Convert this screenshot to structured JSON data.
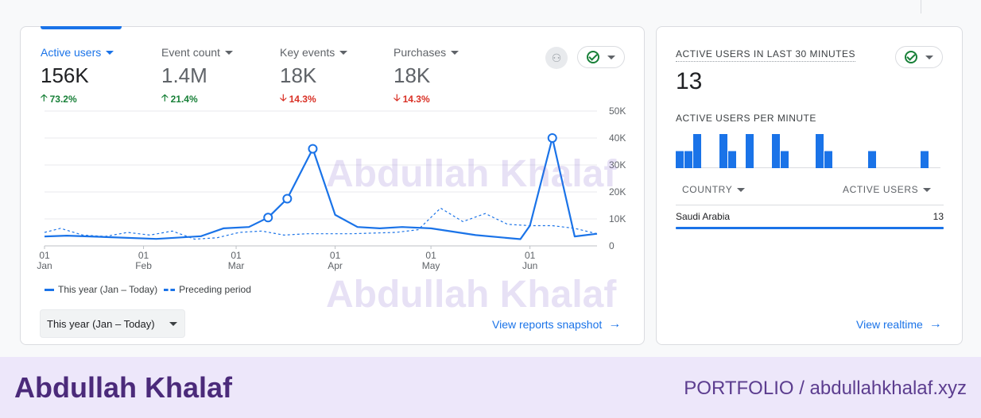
{
  "metrics": [
    {
      "label": "Active users",
      "value": "156K",
      "change": "73.2%",
      "direction": "up",
      "active": true
    },
    {
      "label": "Event count",
      "value": "1.4M",
      "change": "21.4%",
      "direction": "up",
      "active": false
    },
    {
      "label": "Key events",
      "value": "18K",
      "change": "14.3%",
      "direction": "down",
      "active": false
    },
    {
      "label": "Purchases",
      "value": "18K",
      "change": "14.3%",
      "direction": "down",
      "active": false
    }
  ],
  "legend": {
    "this_year": "This year (Jan – Today)",
    "preceding": "Preceding period"
  },
  "date_range": {
    "label": "This year (Jan – Today)"
  },
  "links": {
    "reports_snapshot": "View reports snapshot",
    "realtime": "View realtime"
  },
  "realtime": {
    "title": "ACTIVE USERS IN LAST 30 MINUTES",
    "value": "13",
    "subtitle": "ACTIVE USERS PER MINUTE",
    "col_country": "COUNTRY",
    "col_users": "ACTIVE USERS",
    "rows": [
      {
        "country": "Saudi Arabia",
        "users": "13"
      }
    ],
    "per_minute": [
      1,
      1,
      2,
      0,
      0,
      2,
      1,
      0,
      2,
      0,
      0,
      2,
      1,
      0,
      0,
      0,
      2,
      1,
      0,
      0,
      0,
      0,
      1,
      0,
      0,
      0,
      0,
      0,
      1,
      0
    ]
  },
  "watermark": "Abdullah Khalaf",
  "footer": {
    "name": "Abdullah Khalaf",
    "right": "PORTFOLIO   /   abdullahkhalaf.xyz"
  },
  "colors": {
    "accent": "#1a73e8",
    "up": "#188038",
    "down": "#d93025",
    "footer_bg": "#ede7fa",
    "footer_text": "#4b2a7a"
  },
  "chart_data": {
    "type": "line",
    "x_start": "2024-01-01",
    "x_end": "2024-06-22",
    "x_ticks": [
      {
        "day": "01",
        "month": "Jan",
        "date": "2024-01-01"
      },
      {
        "day": "01",
        "month": "Feb",
        "date": "2024-02-01"
      },
      {
        "day": "01",
        "month": "Mar",
        "date": "2024-03-01"
      },
      {
        "day": "01",
        "month": "Apr",
        "date": "2024-04-01"
      },
      {
        "day": "01",
        "month": "May",
        "date": "2024-05-01"
      },
      {
        "day": "01",
        "month": "Jun",
        "date": "2024-06-01"
      }
    ],
    "y_ticks": [
      "0",
      "10K",
      "20K",
      "30K",
      "40K",
      "50K"
    ],
    "ylim": [
      0,
      50000
    ],
    "grid": true,
    "legend_position": "bottom-left",
    "series": [
      {
        "name": "This year (Jan – Today)",
        "style": "solid",
        "points": [
          [
            "2024-01-01",
            3500
          ],
          [
            "2024-01-08",
            3800
          ],
          [
            "2024-01-22",
            3200
          ],
          [
            "2024-02-05",
            2600
          ],
          [
            "2024-02-19",
            3600
          ],
          [
            "2024-02-26",
            6500
          ],
          [
            "2024-03-05",
            7000
          ],
          [
            "2024-03-11",
            10500
          ],
          [
            "2024-03-17",
            17500
          ],
          [
            "2024-03-25",
            36000
          ],
          [
            "2024-04-01",
            11500
          ],
          [
            "2024-04-08",
            7000
          ],
          [
            "2024-04-15",
            6500
          ],
          [
            "2024-04-22",
            7000
          ],
          [
            "2024-05-01",
            6500
          ],
          [
            "2024-05-15",
            4000
          ],
          [
            "2024-05-29",
            2500
          ],
          [
            "2024-06-01",
            7500
          ],
          [
            "2024-06-08",
            40000
          ],
          [
            "2024-06-15",
            3500
          ],
          [
            "2024-06-22",
            4500
          ]
        ]
      },
      {
        "name": "Preceding period",
        "style": "dashed",
        "points": [
          [
            "2024-01-01",
            5000
          ],
          [
            "2024-01-06",
            6500
          ],
          [
            "2024-01-13",
            4000
          ],
          [
            "2024-01-20",
            3500
          ],
          [
            "2024-01-27",
            5000
          ],
          [
            "2024-02-03",
            4000
          ],
          [
            "2024-02-10",
            5500
          ],
          [
            "2024-02-17",
            2500
          ],
          [
            "2024-02-24",
            3000
          ],
          [
            "2024-03-02",
            5000
          ],
          [
            "2024-03-09",
            5500
          ],
          [
            "2024-03-16",
            4000
          ],
          [
            "2024-03-23",
            4500
          ],
          [
            "2024-03-30",
            4500
          ],
          [
            "2024-04-06",
            4500
          ],
          [
            "2024-04-20",
            5000
          ],
          [
            "2024-04-27",
            6000
          ],
          [
            "2024-05-04",
            14000
          ],
          [
            "2024-05-11",
            9000
          ],
          [
            "2024-05-18",
            12000
          ],
          [
            "2024-05-25",
            8000
          ],
          [
            "2024-06-01",
            7500
          ],
          [
            "2024-06-08",
            7500
          ],
          [
            "2024-06-15",
            6500
          ],
          [
            "2024-06-22",
            4500
          ]
        ]
      }
    ],
    "markers": [
      [
        "2024-03-11",
        10500
      ],
      [
        "2024-03-17",
        17500
      ],
      [
        "2024-03-25",
        36000
      ],
      [
        "2024-06-08",
        40000
      ]
    ]
  }
}
